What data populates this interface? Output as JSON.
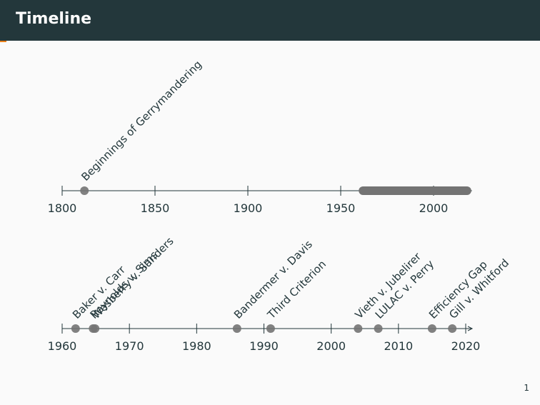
{
  "slide": {
    "title": "Timeline",
    "page_number": "1"
  },
  "colors": {
    "header_bg": "#23373b",
    "accent": "#eb811b",
    "text": "#23373b",
    "marker": "#737373",
    "marker_dark": "#2f2f2f"
  },
  "chart_data": [
    {
      "type": "scatter",
      "name": "overview",
      "x_range": [
        1800,
        2020
      ],
      "ticks": [
        1800,
        1850,
        1900,
        1950,
        2000
      ],
      "events": [
        {
          "year": 1812,
          "label": "Beginnings of Gerrymandering"
        }
      ],
      "span": {
        "start": 1962,
        "end": 2018
      }
    },
    {
      "type": "scatter",
      "name": "detail",
      "x_range": [
        1960,
        2020
      ],
      "ticks": [
        1960,
        1970,
        1980,
        1990,
        2000,
        2010,
        2020
      ],
      "events": [
        {
          "year": 1962,
          "label": "Baker v. Carr"
        },
        {
          "year": 1964.6,
          "label": "Reynolds v. Sims"
        },
        {
          "year": 1964.9,
          "label": "Wesberry v. Sanders"
        },
        {
          "year": 1986,
          "label": "Bandermer v. Davis"
        },
        {
          "year": 1991,
          "label": "Third Criterion"
        },
        {
          "year": 2004,
          "label": "Vieth v. Jubelirer"
        },
        {
          "year": 2007,
          "label": "LULAC v. Perry"
        },
        {
          "year": 2015,
          "label": "Efficiency Gap"
        },
        {
          "year": 2018,
          "label": "Gill v. Whitford"
        }
      ]
    }
  ]
}
